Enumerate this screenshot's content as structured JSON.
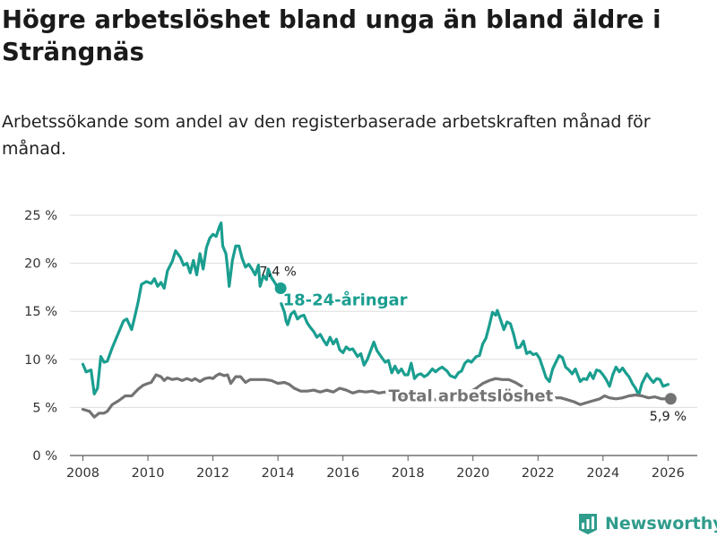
{
  "title": "Högre arbetslöshet bland unga än bland äldre i Strängnäs",
  "subtitle": "Arbetssökande som andel av den registerbaserade arbetskraften månad för månad.",
  "brand": {
    "name": "Newsworthy",
    "icon": "bar-chart-logo-icon",
    "color": "#2f9c8c"
  },
  "chart_data": {
    "type": "line",
    "xlim": [
      2007.6,
      2026.9
    ],
    "ylim": [
      0,
      25
    ],
    "y_ticks": [
      0,
      5,
      10,
      15,
      20,
      25
    ],
    "y_tick_labels": [
      "0 %",
      "5 %",
      "10 %",
      "15 %",
      "20 %",
      "25 %"
    ],
    "x_ticks": [
      2008,
      2010,
      2012,
      2014,
      2016,
      2018,
      2020,
      2022,
      2024,
      2026
    ],
    "x_tick_labels": [
      "2008",
      "2010",
      "2012",
      "2014",
      "2016",
      "2018",
      "2020",
      "2022",
      "2024",
      "2026"
    ],
    "grid": true,
    "series": [
      {
        "name": "18-24-åringar",
        "color": "#1a9e90",
        "end_label": "7,4 %",
        "points": [
          [
            2008.0,
            9.5
          ],
          [
            2008.1,
            8.7
          ],
          [
            2008.25,
            8.9
          ],
          [
            2008.35,
            6.4
          ],
          [
            2008.45,
            7.0
          ],
          [
            2008.55,
            10.3
          ],
          [
            2008.65,
            9.7
          ],
          [
            2008.75,
            9.8
          ],
          [
            2008.9,
            11.2
          ],
          [
            2009.1,
            12.8
          ],
          [
            2009.25,
            14.0
          ],
          [
            2009.35,
            14.2
          ],
          [
            2009.5,
            13.1
          ],
          [
            2009.6,
            14.5
          ],
          [
            2009.7,
            16.0
          ],
          [
            2009.8,
            17.8
          ],
          [
            2009.95,
            18.1
          ],
          [
            2010.1,
            17.9
          ],
          [
            2010.2,
            18.4
          ],
          [
            2010.3,
            17.6
          ],
          [
            2010.4,
            18.0
          ],
          [
            2010.5,
            17.4
          ],
          [
            2010.6,
            19.2
          ],
          [
            2010.75,
            20.2
          ],
          [
            2010.85,
            21.3
          ],
          [
            2011.0,
            20.6
          ],
          [
            2011.1,
            19.8
          ],
          [
            2011.2,
            20.0
          ],
          [
            2011.3,
            19.0
          ],
          [
            2011.4,
            20.3
          ],
          [
            2011.5,
            18.8
          ],
          [
            2011.6,
            21.0
          ],
          [
            2011.7,
            19.4
          ],
          [
            2011.8,
            21.6
          ],
          [
            2011.9,
            22.6
          ],
          [
            2012.0,
            23.0
          ],
          [
            2012.1,
            22.8
          ],
          [
            2012.2,
            23.8
          ],
          [
            2012.25,
            24.2
          ],
          [
            2012.3,
            21.8
          ],
          [
            2012.4,
            21.0
          ],
          [
            2012.45,
            19.5
          ],
          [
            2012.5,
            17.6
          ],
          [
            2012.6,
            20.3
          ],
          [
            2012.7,
            21.8
          ],
          [
            2012.8,
            21.8
          ],
          [
            2012.9,
            20.5
          ],
          [
            2013.0,
            19.6
          ],
          [
            2013.1,
            19.9
          ],
          [
            2013.2,
            19.4
          ],
          [
            2013.3,
            18.8
          ],
          [
            2013.4,
            19.8
          ],
          [
            2013.45,
            17.6
          ],
          [
            2013.55,
            18.7
          ],
          [
            2013.65,
            18.3
          ],
          [
            2013.7,
            19.4
          ],
          [
            2013.8,
            18.5
          ],
          [
            2013.9,
            18.0
          ],
          [
            2014.0,
            17.4
          ]
        ]
      },
      {
        "name": "18-24-åringar (forts.)",
        "color": "#1a9e90",
        "points": [
          [
            2014.1,
            15.8
          ],
          [
            2014.2,
            14.9
          ],
          [
            2014.25,
            14.0
          ],
          [
            2014.3,
            13.6
          ],
          [
            2014.4,
            14.7
          ],
          [
            2014.5,
            15.0
          ],
          [
            2014.6,
            14.2
          ],
          [
            2014.7,
            14.5
          ],
          [
            2014.8,
            14.6
          ],
          [
            2014.9,
            13.8
          ],
          [
            2015.0,
            13.3
          ],
          [
            2015.1,
            12.9
          ],
          [
            2015.2,
            12.3
          ],
          [
            2015.3,
            12.6
          ],
          [
            2015.4,
            12.0
          ],
          [
            2015.5,
            11.5
          ],
          [
            2015.6,
            12.3
          ],
          [
            2015.7,
            11.6
          ],
          [
            2015.8,
            12.1
          ],
          [
            2015.9,
            11.0
          ],
          [
            2016.0,
            10.7
          ],
          [
            2016.1,
            11.3
          ],
          [
            2016.2,
            11.0
          ],
          [
            2016.3,
            11.1
          ],
          [
            2016.45,
            10.3
          ],
          [
            2016.55,
            10.6
          ],
          [
            2016.65,
            9.4
          ],
          [
            2016.75,
            10.0
          ],
          [
            2016.85,
            10.9
          ],
          [
            2016.95,
            11.8
          ],
          [
            2017.05,
            10.9
          ],
          [
            2017.15,
            10.4
          ],
          [
            2017.3,
            9.7
          ],
          [
            2017.4,
            9.9
          ],
          [
            2017.5,
            8.6
          ],
          [
            2017.6,
            9.3
          ],
          [
            2017.7,
            8.6
          ],
          [
            2017.8,
            9.0
          ],
          [
            2017.9,
            8.4
          ],
          [
            2018.0,
            8.4
          ],
          [
            2018.1,
            9.6
          ],
          [
            2018.2,
            8.0
          ],
          [
            2018.3,
            8.4
          ],
          [
            2018.4,
            8.5
          ],
          [
            2018.5,
            8.2
          ],
          [
            2018.6,
            8.4
          ],
          [
            2018.75,
            9.0
          ],
          [
            2018.85,
            8.7
          ],
          [
            2018.95,
            9.0
          ],
          [
            2019.05,
            9.2
          ],
          [
            2019.2,
            8.8
          ],
          [
            2019.3,
            8.3
          ],
          [
            2019.45,
            8.1
          ],
          [
            2019.55,
            8.6
          ],
          [
            2019.65,
            8.8
          ],
          [
            2019.75,
            9.6
          ],
          [
            2019.85,
            9.9
          ],
          [
            2019.95,
            9.7
          ],
          [
            2020.1,
            10.3
          ],
          [
            2020.2,
            10.4
          ],
          [
            2020.3,
            11.6
          ],
          [
            2020.4,
            12.2
          ],
          [
            2020.5,
            13.5
          ],
          [
            2020.6,
            14.9
          ],
          [
            2020.7,
            14.6
          ],
          [
            2020.75,
            15.1
          ],
          [
            2020.85,
            14.1
          ],
          [
            2020.95,
            13.1
          ],
          [
            2021.05,
            13.9
          ],
          [
            2021.15,
            13.7
          ],
          [
            2021.25,
            12.6
          ],
          [
            2021.35,
            11.2
          ],
          [
            2021.45,
            11.3
          ],
          [
            2021.55,
            11.9
          ],
          [
            2021.65,
            10.6
          ],
          [
            2021.75,
            10.8
          ],
          [
            2021.85,
            10.5
          ],
          [
            2021.95,
            10.6
          ],
          [
            2022.05,
            10.1
          ],
          [
            2022.15,
            9.1
          ],
          [
            2022.25,
            8.1
          ],
          [
            2022.35,
            7.7
          ],
          [
            2022.45,
            9.0
          ],
          [
            2022.55,
            9.7
          ],
          [
            2022.65,
            10.4
          ],
          [
            2022.75,
            10.2
          ],
          [
            2022.85,
            9.2
          ],
          [
            2022.95,
            8.9
          ],
          [
            2023.05,
            8.5
          ],
          [
            2023.15,
            9.0
          ],
          [
            2023.3,
            7.7
          ],
          [
            2023.4,
            8.0
          ],
          [
            2023.5,
            7.9
          ],
          [
            2023.6,
            8.6
          ],
          [
            2023.7,
            8.0
          ],
          [
            2023.8,
            8.9
          ],
          [
            2023.9,
            8.8
          ],
          [
            2024.0,
            8.4
          ],
          [
            2024.1,
            7.9
          ],
          [
            2024.2,
            7.2
          ],
          [
            2024.3,
            8.4
          ],
          [
            2024.4,
            9.2
          ],
          [
            2024.5,
            8.7
          ],
          [
            2024.6,
            9.1
          ],
          [
            2024.7,
            8.6
          ],
          [
            2024.8,
            8.2
          ],
          [
            2024.9,
            7.5
          ],
          [
            2025.0,
            7.0
          ],
          [
            2025.1,
            6.3
          ],
          [
            2025.2,
            7.5
          ],
          [
            2025.35,
            8.5
          ],
          [
            2025.45,
            8.0
          ],
          [
            2025.55,
            7.6
          ],
          [
            2025.65,
            8.0
          ],
          [
            2025.75,
            7.9
          ],
          [
            2025.85,
            7.2
          ],
          [
            2026.0,
            7.4
          ]
        ]
      },
      {
        "name": "Total arbetslöshet",
        "color": "#737373",
        "end_label": "5,9 %",
        "points": [
          [
            2008.0,
            4.8
          ],
          [
            2008.2,
            4.6
          ],
          [
            2008.35,
            4.0
          ],
          [
            2008.5,
            4.4
          ],
          [
            2008.65,
            4.4
          ],
          [
            2008.75,
            4.6
          ],
          [
            2008.9,
            5.3
          ],
          [
            2009.1,
            5.7
          ],
          [
            2009.3,
            6.2
          ],
          [
            2009.5,
            6.2
          ],
          [
            2009.7,
            6.9
          ],
          [
            2009.85,
            7.3
          ],
          [
            2010.0,
            7.5
          ],
          [
            2010.1,
            7.6
          ],
          [
            2010.25,
            8.4
          ],
          [
            2010.4,
            8.2
          ],
          [
            2010.5,
            7.8
          ],
          [
            2010.6,
            8.1
          ],
          [
            2010.75,
            7.9
          ],
          [
            2010.9,
            8.0
          ],
          [
            2011.05,
            7.8
          ],
          [
            2011.2,
            8.0
          ],
          [
            2011.35,
            7.8
          ],
          [
            2011.45,
            8.0
          ],
          [
            2011.6,
            7.7
          ],
          [
            2011.75,
            8.0
          ],
          [
            2011.9,
            8.1
          ],
          [
            2012.0,
            8.0
          ],
          [
            2012.1,
            8.3
          ],
          [
            2012.2,
            8.5
          ],
          [
            2012.35,
            8.3
          ],
          [
            2012.45,
            8.4
          ],
          [
            2012.55,
            7.5
          ],
          [
            2012.7,
            8.2
          ],
          [
            2012.85,
            8.2
          ],
          [
            2013.0,
            7.6
          ],
          [
            2013.15,
            7.9
          ],
          [
            2013.35,
            7.9
          ],
          [
            2013.6,
            7.9
          ],
          [
            2013.8,
            7.8
          ],
          [
            2014.0,
            7.5
          ],
          [
            2014.2,
            7.6
          ],
          [
            2014.35,
            7.4
          ],
          [
            2014.5,
            7.0
          ],
          [
            2014.7,
            6.7
          ],
          [
            2014.9,
            6.7
          ],
          [
            2015.1,
            6.8
          ],
          [
            2015.3,
            6.6
          ],
          [
            2015.5,
            6.8
          ],
          [
            2015.7,
            6.6
          ],
          [
            2015.9,
            7.0
          ],
          [
            2016.1,
            6.8
          ],
          [
            2016.3,
            6.5
          ],
          [
            2016.5,
            6.7
          ],
          [
            2016.7,
            6.6
          ],
          [
            2016.9,
            6.7
          ],
          [
            2017.1,
            6.5
          ],
          [
            2017.3,
            6.6
          ],
          [
            2017.5,
            6.3
          ],
          [
            2017.7,
            6.3
          ],
          [
            2017.9,
            6.1
          ],
          [
            2018.1,
            6.3
          ],
          [
            2018.3,
            5.8
          ],
          [
            2018.5,
            5.7
          ],
          [
            2018.7,
            5.8
          ],
          [
            2018.9,
            5.8
          ],
          [
            2019.1,
            6.0
          ],
          [
            2019.3,
            6.0
          ],
          [
            2019.5,
            6.2
          ],
          [
            2019.7,
            6.4
          ],
          [
            2019.9,
            6.6
          ],
          [
            2020.1,
            7.0
          ],
          [
            2020.3,
            7.5
          ],
          [
            2020.5,
            7.8
          ],
          [
            2020.7,
            8.0
          ],
          [
            2020.9,
            7.9
          ],
          [
            2021.1,
            7.9
          ],
          [
            2021.3,
            7.6
          ],
          [
            2021.5,
            7.2
          ],
          [
            2021.7,
            6.8
          ],
          [
            2021.9,
            6.5
          ],
          [
            2022.1,
            6.2
          ],
          [
            2022.3,
            5.9
          ],
          [
            2022.5,
            6.0
          ],
          [
            2022.7,
            6.0
          ],
          [
            2022.9,
            5.8
          ],
          [
            2023.1,
            5.6
          ],
          [
            2023.3,
            5.3
          ],
          [
            2023.5,
            5.5
          ],
          [
            2023.7,
            5.7
          ],
          [
            2023.9,
            5.9
          ],
          [
            2024.05,
            6.2
          ],
          [
            2024.2,
            6.0
          ],
          [
            2024.4,
            5.9
          ],
          [
            2024.6,
            6.0
          ],
          [
            2024.8,
            6.2
          ],
          [
            2025.0,
            6.3
          ],
          [
            2025.2,
            6.2
          ],
          [
            2025.4,
            6.0
          ],
          [
            2025.6,
            6.1
          ],
          [
            2025.8,
            5.9
          ],
          [
            2026.0,
            5.9
          ]
        ]
      }
    ],
    "annotations": [
      {
        "text": "18-24-åringar",
        "x": 2014.15,
        "y": 16.2,
        "color": "#1a9e90",
        "halo": false
      },
      {
        "text": "Total arbetslöshet",
        "x": 2017.4,
        "y": 6.2,
        "color": "#737373",
        "halo": true
      }
    ]
  }
}
